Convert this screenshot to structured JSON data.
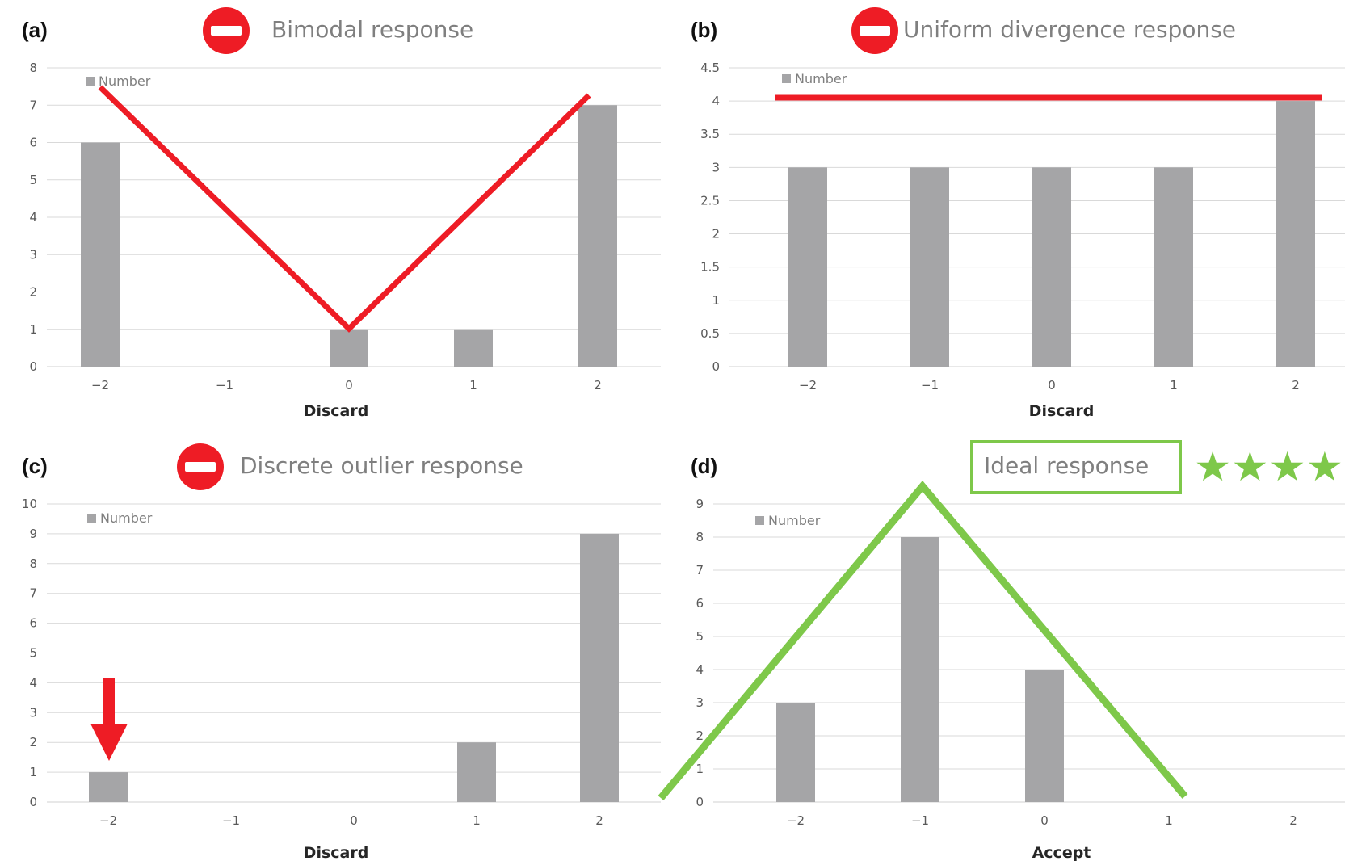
{
  "colors": {
    "bar": "#a5a5a7",
    "grid": "#d9d9d9",
    "red": "#ee1c25",
    "green": "#7ec84a",
    "title": "#7f7f7f"
  },
  "chart_data": [
    {
      "type": "bar",
      "panel": "(a)",
      "title": "Bimodal response",
      "title_icon": "no-entry-icon",
      "xlabel": "Discard",
      "ylabel": "",
      "categories": [
        "−2",
        "−1",
        "0",
        "1",
        "2"
      ],
      "series": [
        {
          "name": "Number",
          "values": [
            6,
            0,
            1,
            1,
            7
          ]
        }
      ],
      "ylim": [
        0,
        8
      ],
      "yticks": [
        "0",
        "1",
        "2",
        "3",
        "4",
        "5",
        "6",
        "7",
        "8"
      ],
      "grid": true,
      "legend": "top-left",
      "overlay": {
        "shape": "V",
        "color": "red"
      }
    },
    {
      "type": "bar",
      "panel": "(b)",
      "title": "Uniform divergence response",
      "title_icon": "no-entry-icon",
      "xlabel": "Discard",
      "ylabel": "",
      "categories": [
        "−2",
        "−1",
        "0",
        "1",
        "2"
      ],
      "series": [
        {
          "name": "Number",
          "values": [
            3,
            3,
            3,
            3,
            4
          ]
        }
      ],
      "ylim": [
        0,
        4.5
      ],
      "yticks": [
        "0",
        "0.5",
        "1",
        "1.5",
        "2",
        "2.5",
        "3",
        "3.5",
        "4",
        "4.5"
      ],
      "grid": true,
      "legend": "top-left",
      "overlay": {
        "shape": "horizontal line",
        "color": "red"
      }
    },
    {
      "type": "bar",
      "panel": "(c)",
      "title": "Discrete outlier response",
      "title_icon": "no-entry-icon",
      "xlabel": "Discard",
      "ylabel": "",
      "categories": [
        "−2",
        "−1",
        "0",
        "1",
        "2"
      ],
      "series": [
        {
          "name": "Number",
          "values": [
            1,
            0,
            0,
            2,
            9
          ]
        }
      ],
      "ylim": [
        0,
        10
      ],
      "yticks": [
        "0",
        "1",
        "2",
        "3",
        "4",
        "5",
        "6",
        "7",
        "8",
        "9",
        "10"
      ],
      "grid": true,
      "legend": "top-left",
      "overlay": {
        "shape": "down arrow",
        "color": "red"
      }
    },
    {
      "type": "bar",
      "panel": "(d)",
      "title": "Ideal response",
      "title_icon": "star-icon",
      "stars": "★★★★",
      "xlabel": "Accept",
      "ylabel": "",
      "categories": [
        "−2",
        "−1",
        "0",
        "1",
        "2"
      ],
      "series": [
        {
          "name": "Number",
          "values": [
            3,
            8,
            4,
            0,
            0
          ]
        }
      ],
      "ylim": [
        0,
        9
      ],
      "yticks": [
        "0",
        "1",
        "2",
        "3",
        "4",
        "5",
        "6",
        "7",
        "8",
        "9"
      ],
      "grid": true,
      "legend": "top-left",
      "overlay": {
        "shape": "inverted V",
        "color": "green"
      }
    }
  ]
}
